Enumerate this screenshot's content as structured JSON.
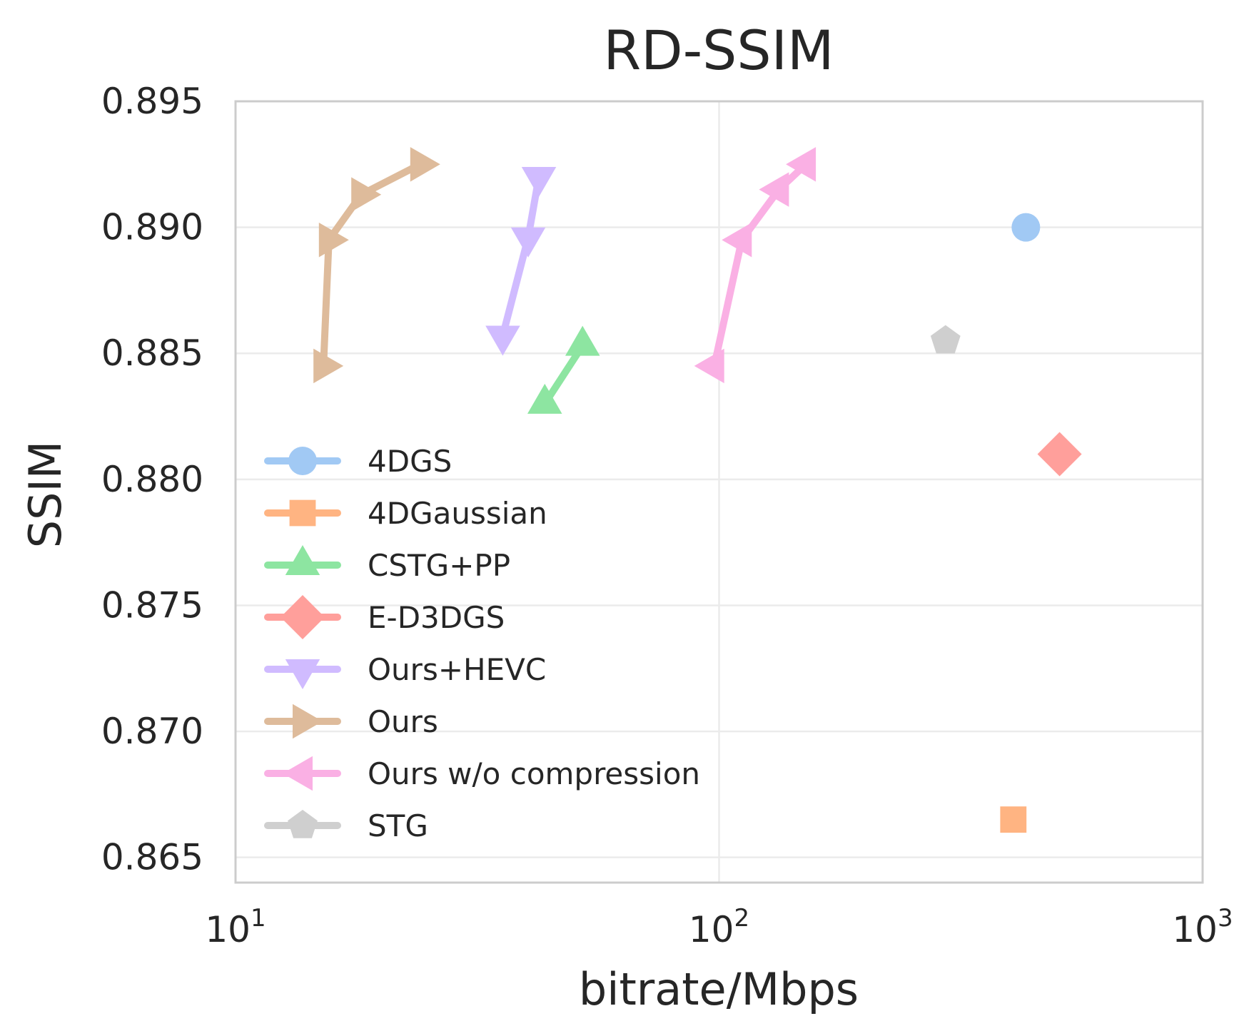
{
  "chart_data": {
    "type": "line",
    "title": "RD-SSIM",
    "xlabel": "bitrate/Mbps",
    "ylabel": "SSIM",
    "xscale": "log",
    "xlim": [
      10,
      1000
    ],
    "ylim": [
      0.864,
      0.895
    ],
    "xticks": [
      {
        "value": 10,
        "base": "10",
        "exp": "1"
      },
      {
        "value": 100,
        "base": "10",
        "exp": "2"
      },
      {
        "value": 1000,
        "base": "10",
        "exp": "3"
      }
    ],
    "yticks": [
      {
        "value": 0.865,
        "label": "0.865"
      },
      {
        "value": 0.87,
        "label": "0.870"
      },
      {
        "value": 0.875,
        "label": "0.875"
      },
      {
        "value": 0.88,
        "label": "0.880"
      },
      {
        "value": 0.885,
        "label": "0.885"
      },
      {
        "value": 0.89,
        "label": "0.890"
      },
      {
        "value": 0.895,
        "label": "0.895"
      }
    ],
    "grid": true,
    "legend_position": "center-left",
    "series": [
      {
        "name": "4DGS",
        "marker": "circle",
        "color": "#a1c9f4",
        "points": [
          [
            431,
            0.89
          ]
        ]
      },
      {
        "name": "4DGaussian",
        "marker": "square",
        "color": "#ffb482",
        "points": [
          [
            406,
            0.8665
          ]
        ]
      },
      {
        "name": "CSTG+PP",
        "marker": "triangle-up",
        "color": "#8de5a1",
        "points": [
          [
            43.6,
            0.883
          ],
          [
            52.2,
            0.8853
          ]
        ]
      },
      {
        "name": "E-D3DGS",
        "marker": "diamond",
        "color": "#ff9f9b",
        "points": [
          [
            506,
            0.881
          ]
        ]
      },
      {
        "name": "Ours+HEVC",
        "marker": "triangle-down",
        "color": "#d0bbff",
        "points": [
          [
            35.7,
            0.8857
          ],
          [
            40.3,
            0.8896
          ],
          [
            42.4,
            0.892
          ]
        ]
      },
      {
        "name": "Ours",
        "marker": "triangle-right",
        "color": "#debb9b",
        "points": [
          [
            15.2,
            0.8845
          ],
          [
            15.6,
            0.8895
          ],
          [
            18.2,
            0.8913
          ],
          [
            24.1,
            0.8925
          ]
        ]
      },
      {
        "name": "Ours w/o compression",
        "marker": "triangle-left",
        "color": "#fab0e4",
        "points": [
          [
            97.7,
            0.8845
          ],
          [
            111.4,
            0.8895
          ],
          [
            133,
            0.8915
          ],
          [
            151.2,
            0.8925
          ]
        ]
      },
      {
        "name": "STG",
        "marker": "pentagon",
        "color": "#cfcfcf",
        "points": [
          [
            294,
            0.8855
          ]
        ]
      }
    ]
  }
}
